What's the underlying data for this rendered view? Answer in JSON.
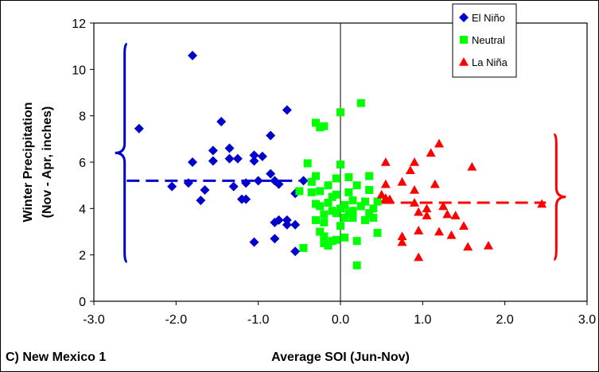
{
  "chart_data": {
    "type": "scatter",
    "panel_label": "C) New Mexico 1",
    "xlabel": "Average SOI (Jun-Nov)",
    "ylabel_lines": [
      "Winter Precipitation",
      "(Nov - Apr, inches)"
    ],
    "xlim": [
      -3.0,
      3.0
    ],
    "ylim": [
      0,
      12
    ],
    "xticks": [
      -3.0,
      -2.0,
      -1.0,
      0.0,
      1.0,
      2.0,
      3.0
    ],
    "xtick_labels": [
      "-3.0",
      "-2.0",
      "-1.0",
      "0.0",
      "1.0",
      "2.0",
      "3.0"
    ],
    "yticks": [
      0,
      2,
      4,
      6,
      8,
      10,
      12
    ],
    "ytick_labels": [
      "0",
      "2",
      "4",
      "6",
      "8",
      "10",
      "12"
    ],
    "grid": false,
    "zero_lines": true,
    "legend_position": "top-right",
    "series": [
      {
        "name": "El Niño",
        "color": "#0000CC",
        "marker": "diamond",
        "mean_line": {
          "y": 5.2,
          "x_range": [
            -2.6,
            -0.5
          ]
        },
        "range_brace": {
          "side": "left",
          "x": -2.5,
          "y_range": [
            1.7,
            11.1
          ]
        },
        "points": [
          [
            -2.45,
            7.45
          ],
          [
            -1.8,
            10.6
          ],
          [
            -1.8,
            6.0
          ],
          [
            -2.05,
            4.95
          ],
          [
            -1.85,
            5.1
          ],
          [
            -1.7,
            4.35
          ],
          [
            -1.65,
            4.8
          ],
          [
            -1.55,
            6.5
          ],
          [
            -1.55,
            6.05
          ],
          [
            -1.45,
            7.75
          ],
          [
            -1.35,
            6.6
          ],
          [
            -1.35,
            6.15
          ],
          [
            -1.25,
            6.15
          ],
          [
            -1.3,
            4.95
          ],
          [
            -1.2,
            4.4
          ],
          [
            -1.15,
            4.4
          ],
          [
            -1.15,
            5.1
          ],
          [
            -1.05,
            6.3
          ],
          [
            -1.05,
            6.05
          ],
          [
            -0.95,
            6.25
          ],
          [
            -1.0,
            5.2
          ],
          [
            -1.05,
            2.55
          ],
          [
            -0.85,
            5.5
          ],
          [
            -0.85,
            7.15
          ],
          [
            -0.8,
            5.2
          ],
          [
            -0.75,
            5.05
          ],
          [
            -0.8,
            3.4
          ],
          [
            -0.75,
            3.5
          ],
          [
            -0.65,
            3.3
          ],
          [
            -0.65,
            3.5
          ],
          [
            -0.8,
            2.7
          ],
          [
            -0.65,
            8.25
          ],
          [
            -0.55,
            4.65
          ],
          [
            -0.55,
            3.3
          ],
          [
            -0.55,
            2.15
          ],
          [
            -0.45,
            5.2
          ]
        ]
      },
      {
        "name": "Neutral",
        "color": "#00FF00",
        "marker": "square",
        "mean_line": null,
        "range_brace": null,
        "points": [
          [
            -0.5,
            4.75
          ],
          [
            -0.45,
            2.3
          ],
          [
            -0.4,
            5.95
          ],
          [
            -0.35,
            4.7
          ],
          [
            -0.35,
            5.15
          ],
          [
            -0.3,
            5.4
          ],
          [
            -0.3,
            4.2
          ],
          [
            -0.3,
            3.5
          ],
          [
            -0.3,
            7.7
          ],
          [
            -0.25,
            7.5
          ],
          [
            -0.2,
            7.55
          ],
          [
            -0.25,
            4.75
          ],
          [
            -0.25,
            4.1
          ],
          [
            -0.25,
            3.0
          ],
          [
            -0.2,
            2.8
          ],
          [
            -0.2,
            2.5
          ],
          [
            -0.2,
            3.4
          ],
          [
            -0.2,
            3.75
          ],
          [
            -0.15,
            5.0
          ],
          [
            -0.15,
            4.25
          ],
          [
            -0.15,
            2.4
          ],
          [
            -0.1,
            2.6
          ],
          [
            -0.1,
            3.9
          ],
          [
            -0.1,
            4.5
          ],
          [
            -0.05,
            5.3
          ],
          [
            -0.05,
            4.6
          ],
          [
            -0.05,
            3.8
          ],
          [
            -0.05,
            2.65
          ],
          [
            0.0,
            8.15
          ],
          [
            0.0,
            5.9
          ],
          [
            0.0,
            4.0
          ],
          [
            0.0,
            3.25
          ],
          [
            0.05,
            3.6
          ],
          [
            0.05,
            4.15
          ],
          [
            0.05,
            2.75
          ],
          [
            0.1,
            5.35
          ],
          [
            0.1,
            4.7
          ],
          [
            0.1,
            3.8
          ],
          [
            0.15,
            4.35
          ],
          [
            0.15,
            3.6
          ],
          [
            0.2,
            5.0
          ],
          [
            0.2,
            2.6
          ],
          [
            0.2,
            1.55
          ],
          [
            0.25,
            8.55
          ],
          [
            0.25,
            4.1
          ],
          [
            0.3,
            4.3
          ],
          [
            0.3,
            3.5
          ],
          [
            0.35,
            5.4
          ],
          [
            0.35,
            4.8
          ],
          [
            0.35,
            3.8
          ],
          [
            0.4,
            4.0
          ],
          [
            0.4,
            3.6
          ],
          [
            0.45,
            4.3
          ],
          [
            0.45,
            2.95
          ],
          [
            0.15,
            3.9
          ]
        ]
      },
      {
        "name": "La Niña",
        "color": "#FF0000",
        "marker": "triangle",
        "mean_line": {
          "y": 4.25,
          "x_range": [
            0.5,
            2.5
          ]
        },
        "range_brace": {
          "side": "right",
          "x": 2.5,
          "y_range": [
            1.8,
            7.2
          ]
        },
        "points": [
          [
            0.5,
            4.6
          ],
          [
            0.55,
            6.0
          ],
          [
            0.55,
            5.05
          ],
          [
            0.55,
            4.45
          ],
          [
            0.6,
            4.4
          ],
          [
            0.75,
            5.15
          ],
          [
            0.75,
            2.8
          ],
          [
            0.75,
            2.55
          ],
          [
            0.85,
            5.65
          ],
          [
            0.9,
            6.0
          ],
          [
            0.9,
            4.8
          ],
          [
            0.9,
            4.25
          ],
          [
            0.95,
            3.85
          ],
          [
            0.95,
            3.05
          ],
          [
            0.95,
            1.9
          ],
          [
            1.05,
            4.0
          ],
          [
            1.05,
            3.7
          ],
          [
            1.1,
            6.4
          ],
          [
            1.15,
            5.05
          ],
          [
            1.2,
            6.8
          ],
          [
            1.2,
            3.0
          ],
          [
            1.25,
            4.1
          ],
          [
            1.3,
            3.75
          ],
          [
            1.35,
            2.85
          ],
          [
            1.4,
            3.7
          ],
          [
            1.5,
            3.25
          ],
          [
            1.55,
            2.35
          ],
          [
            1.6,
            5.8
          ],
          [
            1.8,
            2.4
          ],
          [
            2.45,
            4.2
          ]
        ]
      }
    ]
  }
}
